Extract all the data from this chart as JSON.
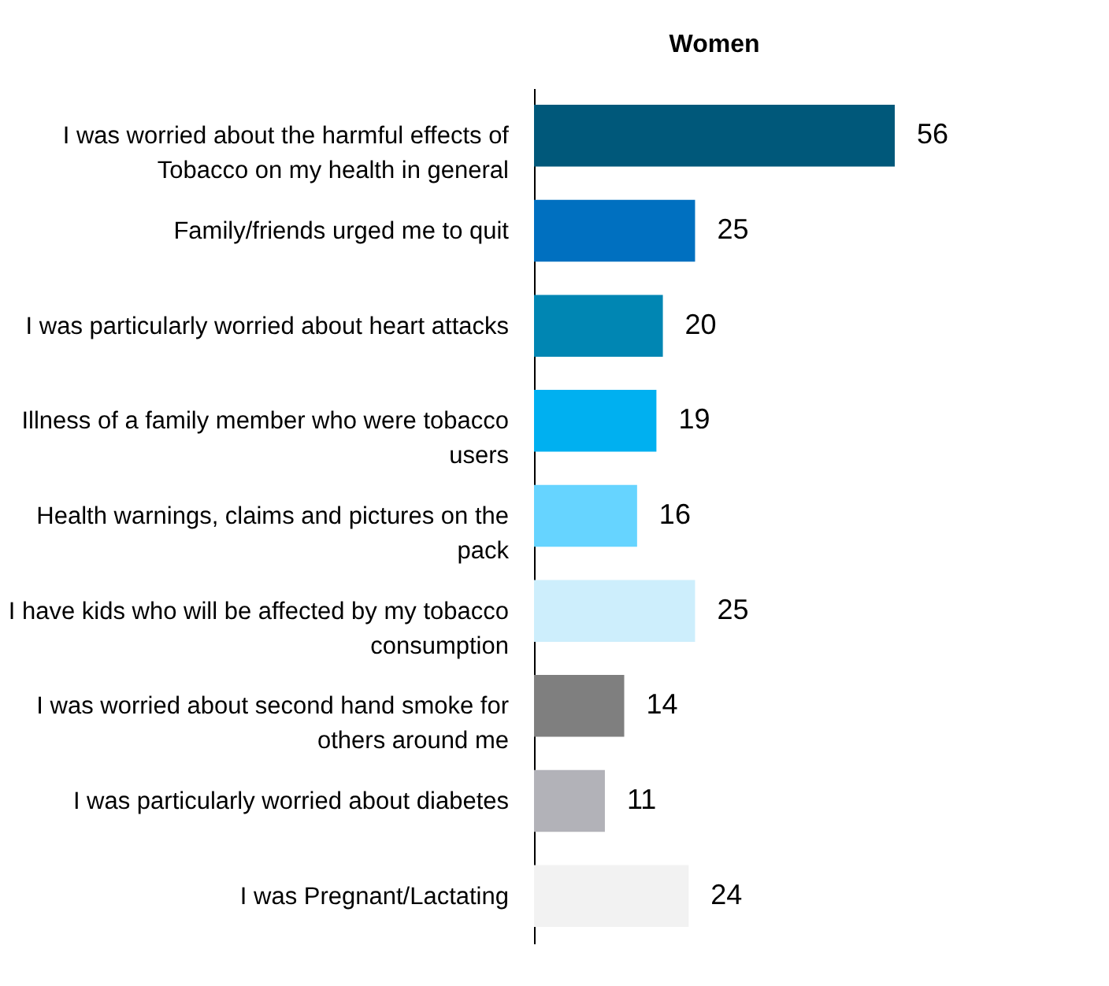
{
  "chart_data": {
    "type": "bar",
    "orientation": "horizontal",
    "title": "Women",
    "data_labels": true,
    "grid": false,
    "categories": [
      "I was worried about the harmful effects of Tobacco on my health in general",
      "Family/friends urged me to quit",
      "I was particularly worried about heart attacks",
      "Illness of a family member who were tobacco users",
      "Health warnings, claims and pictures on the pack",
      "I have kids who will be affected by my tobacco consumption",
      "I was worried about second hand smoke for others around me",
      "I was particularly worried about diabetes",
      "I was Pregnant/Lactating"
    ],
    "values": [
      56,
      25,
      20,
      19,
      16,
      25,
      14,
      11,
      24
    ],
    "colors": [
      "#00587a",
      "#0070c0",
      "#0086b3",
      "#00b0f0",
      "#66d4ff",
      "#cdeefc",
      "#7f7f7f",
      "#b2b2b8",
      "#f2f2f2"
    ]
  }
}
